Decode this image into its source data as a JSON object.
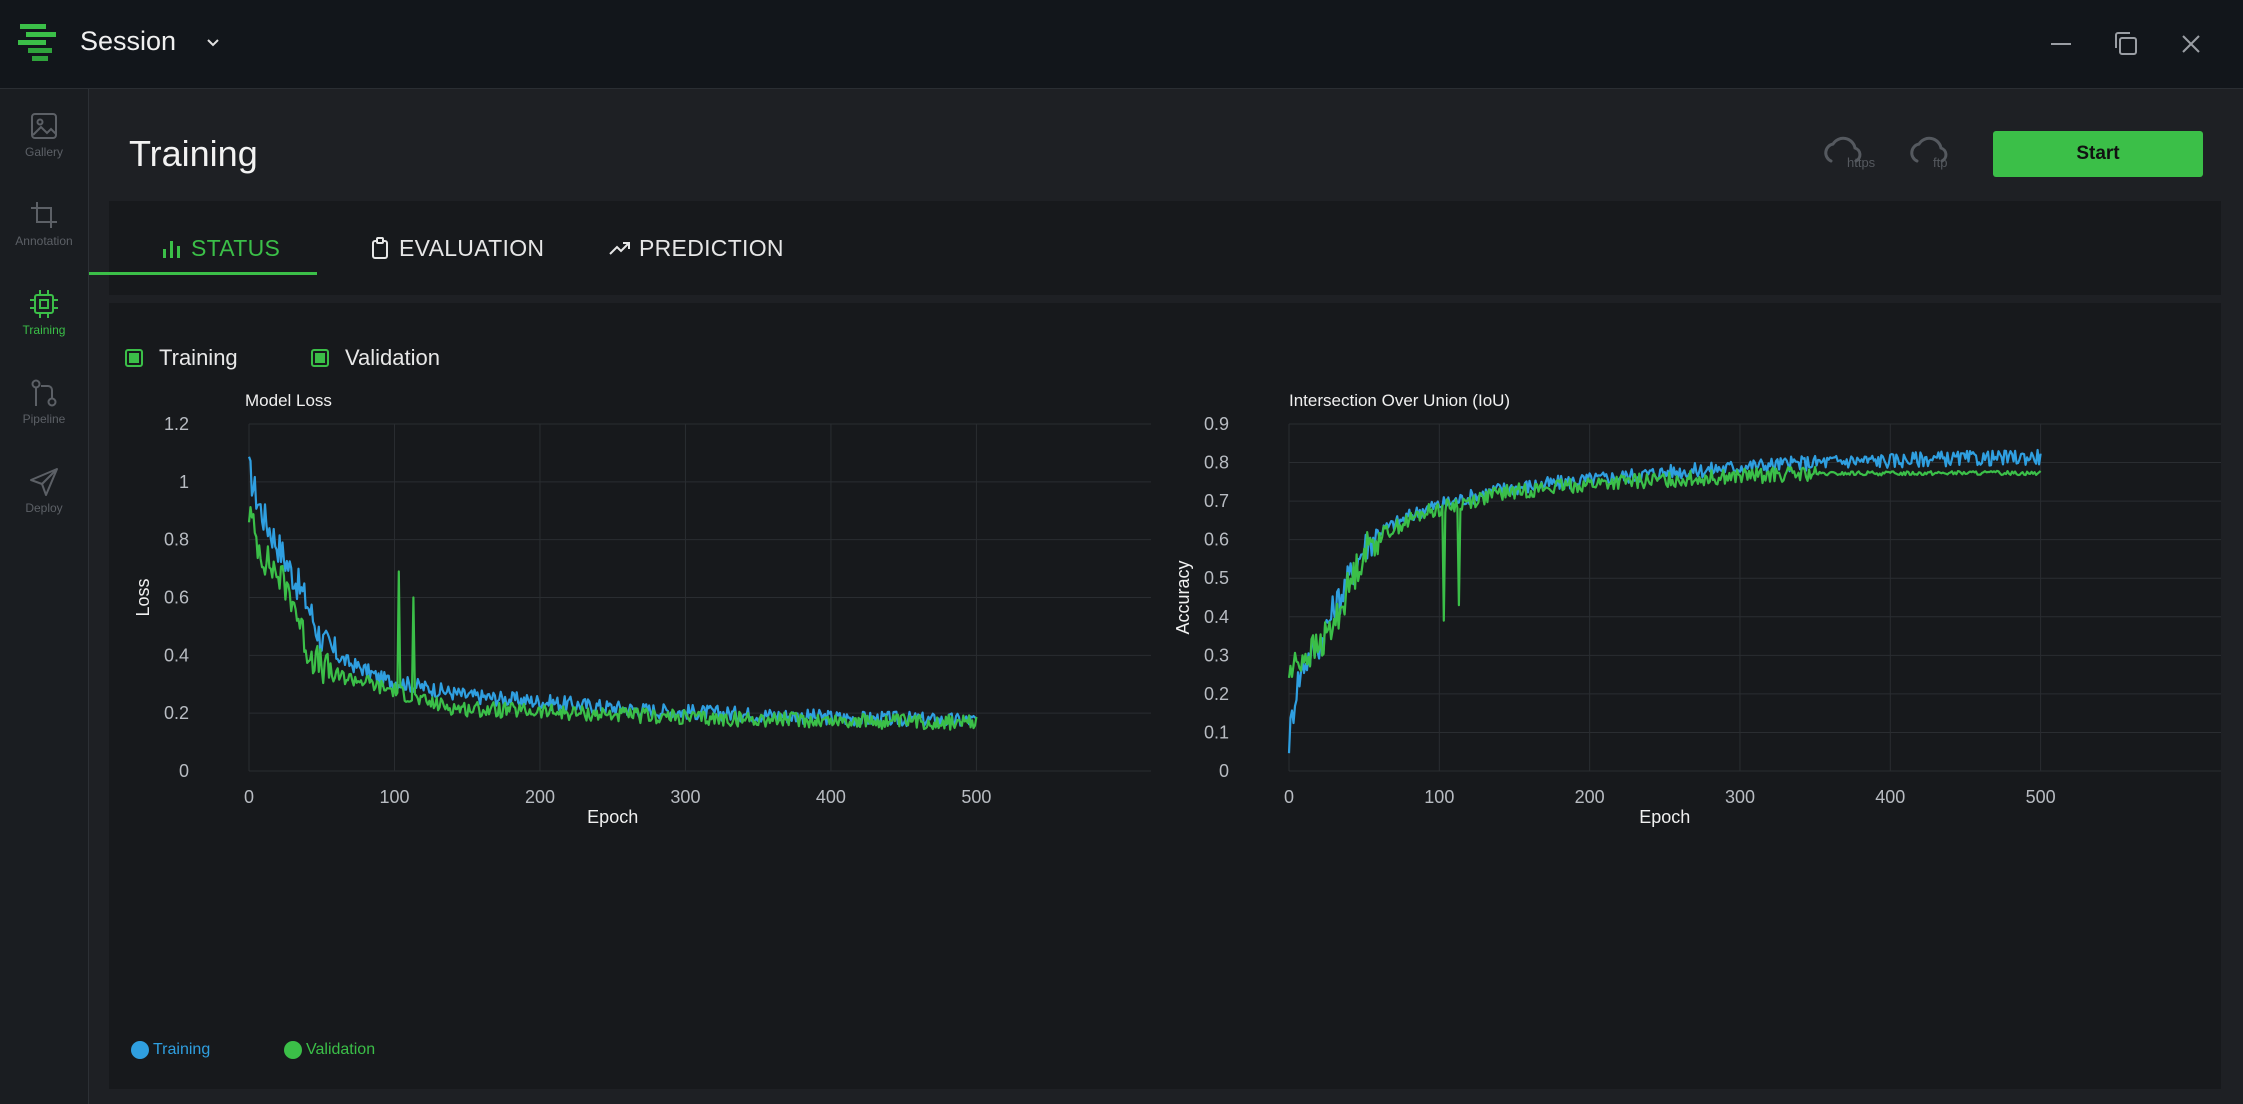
{
  "window": {
    "session_label": "Session"
  },
  "sidebar": {
    "items": [
      {
        "label": "Gallery",
        "icon": "image-icon"
      },
      {
        "label": "Annotation",
        "icon": "crop-icon"
      },
      {
        "label": "Training",
        "icon": "chip-icon",
        "active": true
      },
      {
        "label": "Pipeline",
        "icon": "pipeline-icon"
      },
      {
        "label": "Deploy",
        "icon": "send-icon"
      }
    ]
  },
  "header": {
    "title": "Training",
    "cloud_https_label": "https",
    "cloud_ftp_label": "ftp",
    "start_label": "Start"
  },
  "tabs": [
    {
      "label": "STATUS",
      "icon": "bar-chart-icon",
      "active": true
    },
    {
      "label": "EVALUATION",
      "icon": "clipboard-icon"
    },
    {
      "label": "PREDICTION",
      "icon": "trending-up-icon"
    }
  ],
  "toggles": {
    "training_label": "Training",
    "validation_label": "Validation"
  },
  "legend": {
    "training_label": "Training",
    "validation_label": "Validation"
  },
  "colors": {
    "accent": "#3bbf48",
    "training": "#2f9fe0",
    "validation": "#3bbf48",
    "panel": "#17191c"
  },
  "chart_data": [
    {
      "type": "line",
      "title": "Model Loss",
      "xlabel": "Epoch",
      "ylabel": "Loss",
      "xlim": [
        0,
        620
      ],
      "ylim": [
        0,
        1.2
      ],
      "xticks": [
        0,
        100,
        200,
        300,
        400,
        500
      ],
      "yticks": [
        0,
        0.2,
        0.4,
        0.6,
        0.8,
        1,
        1.2
      ],
      "ytick_labels": [
        "0",
        "0.2",
        "0.4",
        "0.6",
        "0.8",
        "1",
        "1.2"
      ],
      "grid": true,
      "x": [
        0,
        5,
        10,
        20,
        30,
        40,
        50,
        60,
        70,
        80,
        90,
        100,
        110,
        120,
        130,
        140,
        150,
        175,
        200,
        225,
        250,
        275,
        300,
        325,
        350,
        375,
        400,
        425,
        450,
        475,
        500
      ],
      "series": [
        {
          "name": "Training",
          "values": [
            1.04,
            0.95,
            0.88,
            0.78,
            0.68,
            0.58,
            0.45,
            0.4,
            0.37,
            0.35,
            0.32,
            0.31,
            0.3,
            0.29,
            0.28,
            0.27,
            0.26,
            0.25,
            0.24,
            0.23,
            0.22,
            0.21,
            0.205,
            0.2,
            0.195,
            0.19,
            0.185,
            0.18,
            0.18,
            0.175,
            0.175
          ]
        },
        {
          "name": "Validation",
          "values": [
            0.9,
            0.8,
            0.74,
            0.68,
            0.6,
            0.42,
            0.36,
            0.33,
            0.32,
            0.31,
            0.29,
            0.28,
            0.26,
            0.24,
            0.23,
            0.22,
            0.215,
            0.21,
            0.205,
            0.2,
            0.195,
            0.19,
            0.185,
            0.18,
            0.18,
            0.178,
            0.175,
            0.172,
            0.17,
            0.17,
            0.165
          ]
        }
      ],
      "annotations": [
        {
          "series": "Validation",
          "x": 103,
          "y": 0.69
        },
        {
          "series": "Validation",
          "x": 113,
          "y": 0.6
        }
      ]
    },
    {
      "type": "line",
      "title": "Intersection Over Union (IoU)",
      "xlabel": "Epoch",
      "ylabel": "Accuracy",
      "xlim": [
        0,
        620
      ],
      "ylim": [
        0,
        0.9
      ],
      "xticks": [
        0,
        100,
        200,
        300,
        400,
        500
      ],
      "yticks": [
        0,
        0.1,
        0.2,
        0.3,
        0.4,
        0.5,
        0.6,
        0.7,
        0.8,
        0.9
      ],
      "ytick_labels": [
        "0",
        "0.1",
        "0.2",
        "0.3",
        "0.4",
        "0.5",
        "0.6",
        "0.7",
        "0.8",
        "0.9"
      ],
      "grid": true,
      "x": [
        0,
        5,
        10,
        20,
        30,
        40,
        50,
        60,
        70,
        80,
        90,
        100,
        110,
        120,
        130,
        140,
        150,
        175,
        200,
        225,
        250,
        275,
        300,
        325,
        350,
        375,
        400,
        425,
        450,
        475,
        500
      ],
      "series": [
        {
          "name": "Training",
          "values": [
            0.08,
            0.22,
            0.28,
            0.33,
            0.42,
            0.5,
            0.58,
            0.62,
            0.64,
            0.66,
            0.68,
            0.69,
            0.7,
            0.71,
            0.72,
            0.73,
            0.735,
            0.745,
            0.755,
            0.765,
            0.775,
            0.78,
            0.79,
            0.795,
            0.8,
            0.805,
            0.805,
            0.81,
            0.81,
            0.812,
            0.815
          ]
        },
        {
          "name": "Validation",
          "values": [
            0.25,
            0.28,
            0.3,
            0.32,
            0.38,
            0.48,
            0.57,
            0.61,
            0.63,
            0.65,
            0.67,
            0.68,
            0.69,
            0.7,
            0.71,
            0.72,
            0.725,
            0.735,
            0.745,
            0.75,
            0.755,
            0.76,
            0.765,
            0.768,
            0.77,
            0.772,
            0.772,
            0.773,
            0.773,
            0.773,
            0.773
          ]
        }
      ],
      "annotations": [
        {
          "series": "Validation",
          "x": 103,
          "y": 0.39
        },
        {
          "series": "Validation",
          "x": 113,
          "y": 0.43
        }
      ]
    }
  ]
}
